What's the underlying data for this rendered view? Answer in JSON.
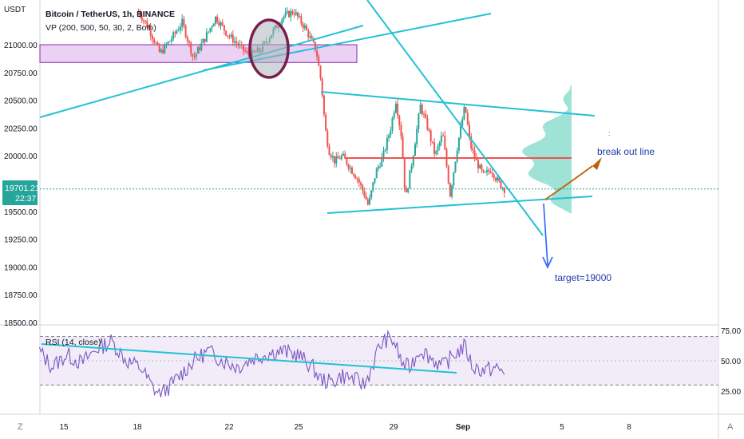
{
  "colors": {
    "up": "#26a69a",
    "down": "#ef5350",
    "trendline": "#22c1d6",
    "zone": "#c77ee0",
    "poc": "#ef5350",
    "volume_profile": "#7fd8c8",
    "rsi_line": "#7e57c2",
    "rsi_band": "#ede7f6",
    "price_tag": "#26a69a",
    "breakout_arrow": "#c0600a",
    "target_arrow": "#2962ff",
    "circle": "#7b1e4e"
  },
  "chart_data": [
    {
      "type": "candlestick",
      "title": "Bitcoin / TetherUS, 1h, BINANCE",
      "indicator": "VP (200, 500, 50, 30, 2, Both)",
      "currency": "USDT",
      "ylim": [
        18440,
        21300
      ],
      "y_ticks": [
        "21000.00",
        "20750.00",
        "20500.00",
        "20250.00",
        "20000.00",
        "19750.00",
        "19500.00",
        "19250.00",
        "19000.00",
        "18750.00",
        "18500.00"
      ],
      "x_ticks": [
        "15",
        "18",
        "22",
        "25",
        "29",
        "Sep",
        "5",
        "8"
      ],
      "current_price": "19701.21",
      "countdown": "22:37",
      "price_path": [
        [
          0.186,
          21300
        ],
        [
          0.2,
          21150
        ],
        [
          0.215,
          20920
        ],
        [
          0.23,
          21050
        ],
        [
          0.245,
          21200
        ],
        [
          0.26,
          20880
        ],
        [
          0.275,
          21050
        ],
        [
          0.29,
          21250
        ],
        [
          0.305,
          21100
        ],
        [
          0.32,
          21000
        ],
        [
          0.335,
          20900
        ],
        [
          0.35,
          20950
        ],
        [
          0.365,
          21100
        ],
        [
          0.38,
          21250
        ],
        [
          0.395,
          21300
        ],
        [
          0.41,
          21150
        ],
        [
          0.425,
          20950
        ],
        [
          0.432,
          20650
        ],
        [
          0.437,
          20250
        ],
        [
          0.442,
          20050
        ],
        [
          0.45,
          19950
        ],
        [
          0.46,
          20000
        ],
        [
          0.47,
          19900
        ],
        [
          0.48,
          19800
        ],
        [
          0.49,
          19650
        ],
        [
          0.495,
          19550
        ],
        [
          0.505,
          19850
        ],
        [
          0.515,
          20000
        ],
        [
          0.525,
          20250
        ],
        [
          0.532,
          20500
        ],
        [
          0.54,
          20150
        ],
        [
          0.545,
          19600
        ],
        [
          0.555,
          20000
        ],
        [
          0.565,
          20450
        ],
        [
          0.575,
          20250
        ],
        [
          0.585,
          20000
        ],
        [
          0.595,
          20200
        ],
        [
          0.605,
          19650
        ],
        [
          0.615,
          20100
        ],
        [
          0.625,
          20450
        ],
        [
          0.632,
          20100
        ],
        [
          0.64,
          19950
        ],
        [
          0.65,
          19820
        ],
        [
          0.66,
          19880
        ],
        [
          0.67,
          19760
        ],
        [
          0.678,
          19700
        ]
      ],
      "support_zone": [
        20840,
        21000
      ],
      "point_of_control": 19980,
      "annotations": [
        "break out line",
        "target=19000"
      ]
    },
    {
      "type": "line",
      "title": "RSI (14, close)",
      "ylim": [
        20,
        80
      ],
      "y_ticks": [
        "75.00",
        "50.00",
        "25.00"
      ],
      "bands": [
        70,
        30
      ],
      "rsi_path": [
        [
          0.053,
          58
        ],
        [
          0.07,
          45
        ],
        [
          0.09,
          55
        ],
        [
          0.11,
          48
        ],
        [
          0.13,
          60
        ],
        [
          0.15,
          66
        ],
        [
          0.17,
          50
        ],
        [
          0.19,
          44
        ],
        [
          0.205,
          28
        ],
        [
          0.215,
          22
        ],
        [
          0.23,
          30
        ],
        [
          0.245,
          40
        ],
        [
          0.26,
          50
        ],
        [
          0.28,
          58
        ],
        [
          0.3,
          50
        ],
        [
          0.32,
          45
        ],
        [
          0.34,
          52
        ],
        [
          0.36,
          56
        ],
        [
          0.38,
          58
        ],
        [
          0.4,
          55
        ],
        [
          0.41,
          50
        ],
        [
          0.42,
          45
        ],
        [
          0.43,
          35
        ],
        [
          0.445,
          32
        ],
        [
          0.46,
          38
        ],
        [
          0.475,
          35
        ],
        [
          0.49,
          30
        ],
        [
          0.5,
          45
        ],
        [
          0.51,
          62
        ],
        [
          0.52,
          68
        ],
        [
          0.53,
          66
        ],
        [
          0.54,
          48
        ],
        [
          0.55,
          44
        ],
        [
          0.565,
          60
        ],
        [
          0.58,
          52
        ],
        [
          0.595,
          45
        ],
        [
          0.61,
          55
        ],
        [
          0.625,
          62
        ],
        [
          0.635,
          45
        ],
        [
          0.65,
          42
        ],
        [
          0.665,
          44
        ],
        [
          0.678,
          40
        ]
      ]
    }
  ]
}
